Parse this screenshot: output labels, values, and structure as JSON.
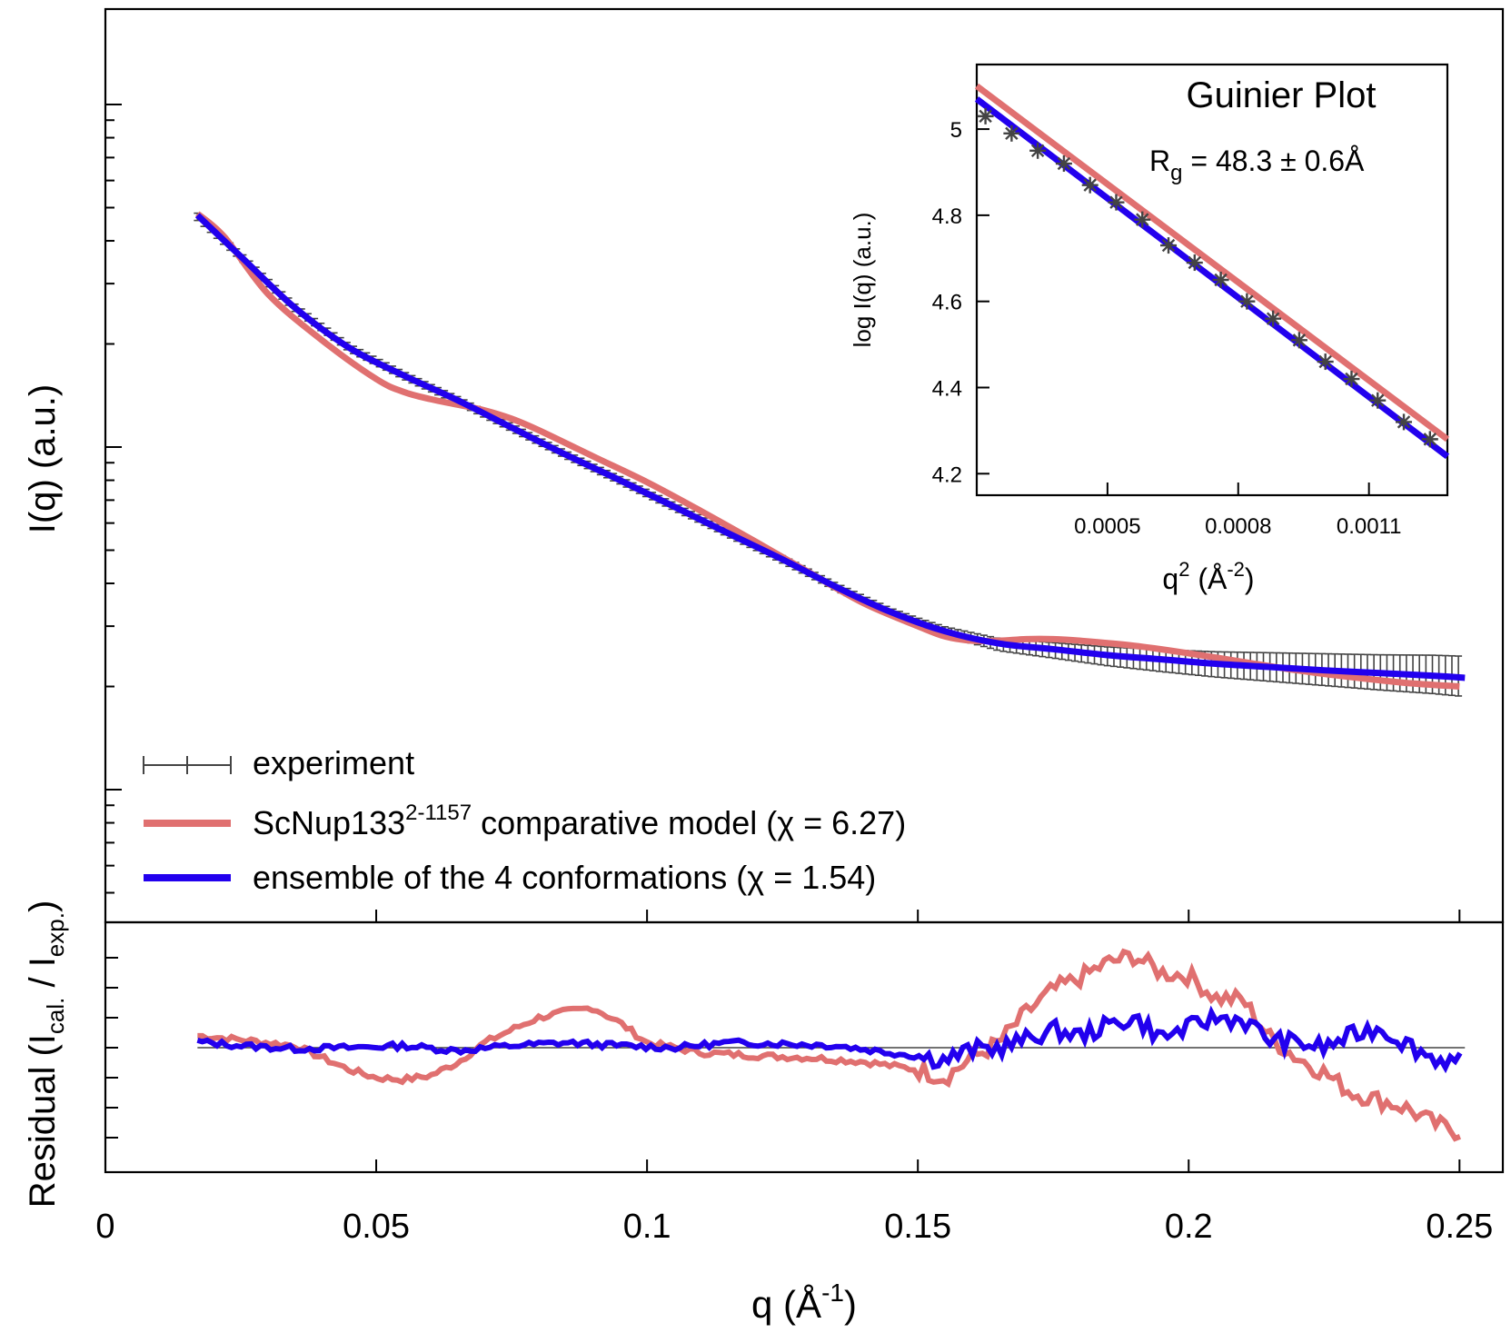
{
  "colors": {
    "model": "#e07070",
    "ensemble": "#2200ee",
    "experiment": "#444444",
    "axis": "#000000"
  },
  "chart_data": [
    {
      "type": "line",
      "panel": "main",
      "xlabel": "q (Å-1)",
      "xlabel_parts": {
        "base": "q  (Å",
        "sup": "-1",
        "tail": ")"
      },
      "ylabel": "I(q)  (a.u.)",
      "y_scale": "log",
      "y_tick_labels": false,
      "xlim": [
        0,
        0.258
      ],
      "x_ticks": [
        0,
        0.05,
        0.1,
        0.15,
        0.2,
        0.25
      ],
      "x_tick_labels": [
        "0",
        "0.05",
        "0.1",
        "0.15",
        "0.2",
        "0.25"
      ],
      "legend": {
        "placement": "bottom-left",
        "entries": [
          {
            "key": "experiment",
            "text": "experiment"
          },
          {
            "key": "model",
            "text_before": "ScNup133",
            "sup": "2-1157",
            "text_after": " comparative model (χ = 6.27)"
          },
          {
            "key": "ensemble",
            "text": "ensemble of the 4 conformations (χ = 1.54)"
          }
        ]
      },
      "series": [
        {
          "key": "experiment",
          "style": "points with error bars",
          "x": [
            0.017,
            0.025,
            0.035,
            0.045,
            0.055,
            0.065,
            0.075,
            0.085,
            0.095,
            0.105,
            0.115,
            0.125,
            0.135,
            0.145,
            0.155,
            0.165,
            0.175,
            0.185,
            0.195,
            0.205,
            0.215,
            0.225,
            0.235,
            0.245,
            0.251
          ],
          "y": [
            4.7,
            3.6,
            2.55,
            1.95,
            1.62,
            1.37,
            1.14,
            0.95,
            0.8,
            0.67,
            0.56,
            0.47,
            0.39,
            0.33,
            0.29,
            0.265,
            0.255,
            0.245,
            0.238,
            0.232,
            0.228,
            0.224,
            0.22,
            0.217,
            0.214
          ]
        },
        {
          "key": "model",
          "x": [
            0.017,
            0.022,
            0.03,
            0.04,
            0.05,
            0.055,
            0.06,
            0.065,
            0.07,
            0.075,
            0.08,
            0.09,
            0.1,
            0.11,
            0.12,
            0.13,
            0.14,
            0.15,
            0.155,
            0.16,
            0.165,
            0.17,
            0.175,
            0.18,
            0.19,
            0.2,
            0.21,
            0.22,
            0.23,
            0.24,
            0.25
          ],
          "y": [
            4.8,
            4.1,
            2.8,
            2.05,
            1.58,
            1.45,
            1.38,
            1.33,
            1.28,
            1.21,
            1.12,
            0.94,
            0.79,
            0.65,
            0.53,
            0.43,
            0.35,
            0.3,
            0.28,
            0.272,
            0.272,
            0.275,
            0.275,
            0.272,
            0.263,
            0.25,
            0.236,
            0.223,
            0.213,
            0.205,
            0.2
          ]
        },
        {
          "key": "ensemble",
          "x": [
            0.017,
            0.025,
            0.035,
            0.045,
            0.055,
            0.065,
            0.075,
            0.085,
            0.095,
            0.105,
            0.115,
            0.125,
            0.135,
            0.145,
            0.155,
            0.165,
            0.175,
            0.185,
            0.195,
            0.205,
            0.215,
            0.225,
            0.235,
            0.245,
            0.251
          ],
          "y": [
            4.75,
            3.6,
            2.55,
            1.95,
            1.62,
            1.37,
            1.14,
            0.95,
            0.8,
            0.67,
            0.56,
            0.47,
            0.39,
            0.33,
            0.29,
            0.267,
            0.257,
            0.247,
            0.24,
            0.233,
            0.228,
            0.223,
            0.219,
            0.215,
            0.212
          ]
        }
      ]
    },
    {
      "type": "line",
      "panel": "residual",
      "ylabel_parts": {
        "base": "Residual (I",
        "sub1": "cal.",
        "mid": " / I",
        "sub2": "exp.",
        "tail": ")"
      },
      "y_tick_labels": false,
      "baseline": 0,
      "xlim": [
        0,
        0.258
      ],
      "ylim": [
        -1.1,
        1.1
      ],
      "series": [
        {
          "key": "model",
          "x": [
            0.017,
            0.025,
            0.035,
            0.045,
            0.05,
            0.055,
            0.06,
            0.065,
            0.07,
            0.075,
            0.08,
            0.085,
            0.09,
            0.095,
            0.1,
            0.11,
            0.12,
            0.13,
            0.14,
            0.15,
            0.155,
            0.16,
            0.165,
            0.17,
            0.175,
            0.18,
            0.185,
            0.19,
            0.195,
            0.2,
            0.205,
            0.21,
            0.215,
            0.22,
            0.225,
            0.23,
            0.235,
            0.24,
            0.245,
            0.25,
            0.251
          ],
          "y": [
            0.12,
            0.08,
            0.02,
            -0.22,
            -0.3,
            -0.32,
            -0.28,
            -0.15,
            0.05,
            0.18,
            0.3,
            0.36,
            0.4,
            0.25,
            0.05,
            -0.05,
            -0.08,
            -0.1,
            -0.14,
            -0.22,
            -0.3,
            -0.1,
            0.05,
            0.35,
            0.58,
            0.7,
            0.85,
            0.92,
            0.75,
            0.72,
            0.5,
            0.48,
            0.1,
            -0.1,
            -0.25,
            -0.45,
            -0.52,
            -0.6,
            -0.75,
            -0.85,
            -0.72
          ]
        },
        {
          "key": "ensemble",
          "x": [
            0.017,
            0.025,
            0.035,
            0.045,
            0.055,
            0.065,
            0.075,
            0.085,
            0.095,
            0.105,
            0.115,
            0.125,
            0.135,
            0.145,
            0.155,
            0.16,
            0.165,
            0.17,
            0.175,
            0.18,
            0.185,
            0.19,
            0.195,
            0.2,
            0.205,
            0.21,
            0.215,
            0.22,
            0.225,
            0.23,
            0.235,
            0.24,
            0.245,
            0.25,
            0.251
          ],
          "y": [
            0.06,
            0.02,
            -0.01,
            0.0,
            0.02,
            -0.03,
            0.02,
            0.05,
            0.02,
            0.0,
            0.05,
            0.04,
            0.02,
            -0.05,
            -0.12,
            -0.02,
            0.0,
            0.08,
            0.18,
            0.12,
            0.22,
            0.3,
            0.1,
            0.2,
            0.3,
            0.28,
            0.08,
            0.05,
            0.0,
            0.12,
            0.2,
            0.05,
            -0.1,
            -0.15,
            -0.08
          ]
        }
      ]
    },
    {
      "type": "scatter",
      "panel": "inset",
      "title": "Guinier Plot",
      "annotation": {
        "base": "R",
        "sub": "g",
        "rest": " = 48.3 ± 0.6Å"
      },
      "xlabel_parts": {
        "base": "q",
        "sup": "2",
        "mid": "  (Å",
        "sup2": "-2",
        "tail": ")"
      },
      "ylabel": "log I(q)  (a.u.)",
      "xlim": [
        0.0002,
        0.00128
      ],
      "ylim": [
        4.15,
        5.15
      ],
      "x_ticks": [
        0.0005,
        0.0008,
        0.0011
      ],
      "x_tick_labels": [
        "0.0005",
        "0.0008",
        "0.0011"
      ],
      "y_ticks": [
        4.2,
        4.4,
        4.6,
        4.8,
        5.0
      ],
      "y_tick_labels": [
        "4.2",
        "4.4",
        "4.6",
        "4.8",
        "5"
      ],
      "series": [
        {
          "key": "experiment",
          "style": "asterisk markers",
          "x": [
            0.00022,
            0.00028,
            0.00034,
            0.0004,
            0.00046,
            0.00052,
            0.00058,
            0.00064,
            0.0007,
            0.00076,
            0.00082,
            0.00088,
            0.00094,
            0.001,
            0.00106,
            0.00112,
            0.00118,
            0.00124
          ],
          "y": [
            5.03,
            4.99,
            4.95,
            4.92,
            4.87,
            4.83,
            4.79,
            4.73,
            4.69,
            4.65,
            4.6,
            4.56,
            4.51,
            4.46,
            4.42,
            4.37,
            4.32,
            4.28
          ]
        },
        {
          "key": "model",
          "x": [
            0.0002,
            0.00128
          ],
          "y": [
            5.1,
            4.28
          ]
        },
        {
          "key": "ensemble",
          "x": [
            0.0002,
            0.00128
          ],
          "y": [
            5.07,
            4.24
          ]
        }
      ]
    }
  ]
}
